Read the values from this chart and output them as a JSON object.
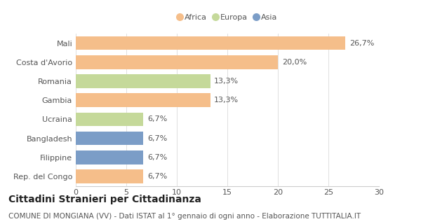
{
  "categories": [
    "Mali",
    "Costa d'Avorio",
    "Romania",
    "Gambia",
    "Ucraina",
    "Bangladesh",
    "Filippine",
    "Rep. del Congo"
  ],
  "values": [
    26.7,
    20.0,
    13.3,
    13.3,
    6.7,
    6.7,
    6.7,
    6.7
  ],
  "labels": [
    "26,7%",
    "20,0%",
    "13,3%",
    "13,3%",
    "6,7%",
    "6,7%",
    "6,7%",
    "6,7%"
  ],
  "colors": [
    "#F5BE8A",
    "#F5BE8A",
    "#C5D99A",
    "#F5BE8A",
    "#C5D99A",
    "#7B9DC7",
    "#7B9DC7",
    "#F5BE8A"
  ],
  "legend": [
    {
      "label": "Africa",
      "color": "#F5BE8A"
    },
    {
      "label": "Europa",
      "color": "#C5D99A"
    },
    {
      "label": "Asia",
      "color": "#7B9DC7"
    }
  ],
  "xlim": [
    0,
    30
  ],
  "xticks": [
    0,
    5,
    10,
    15,
    20,
    25,
    30
  ],
  "title": "Cittadini Stranieri per Cittadinanza",
  "subtitle": "COMUNE DI MONGIANA (VV) - Dati ISTAT al 1° gennaio di ogni anno - Elaborazione TUTTITALIA.IT",
  "title_fontsize": 10,
  "subtitle_fontsize": 7.5,
  "label_fontsize": 8,
  "tick_fontsize": 8,
  "bar_height": 0.72,
  "bg_color": "#FFFFFF",
  "text_color": "#555555",
  "grid_color": "#E0E0E0",
  "spine_color": "#CCCCCC"
}
